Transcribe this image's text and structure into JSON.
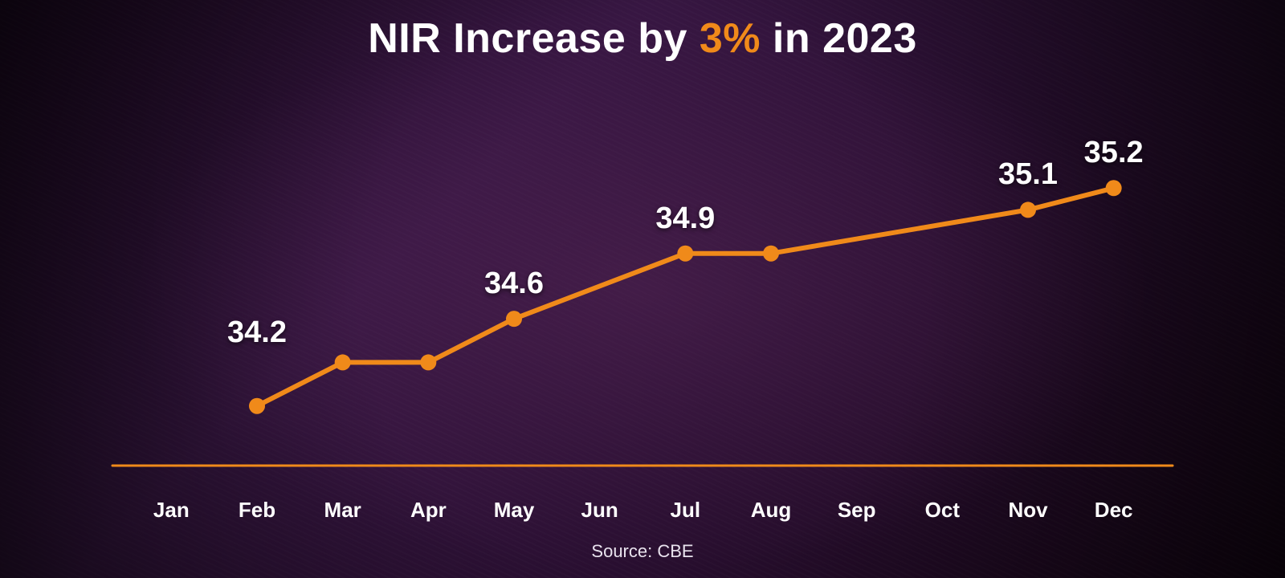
{
  "title": {
    "pre": "NIR Increase by ",
    "accent": "3%",
    "post": " in 2023",
    "fontsize": 52,
    "color": "#ffffff",
    "accent_color": "#f08a1a"
  },
  "source": {
    "text": "Source: CBE",
    "fontsize": 22,
    "color": "#e9e3ee"
  },
  "chart": {
    "type": "line",
    "background_color": "#2b1030",
    "line_color": "#f08a1a",
    "line_width": 6,
    "marker_color": "#f08a1a",
    "marker_radius": 10,
    "axis_color": "#f08a1a",
    "axis_width": 3,
    "xlabel_color": "#ffffff",
    "xlabel_fontsize": 26,
    "value_label_color": "#ffffff",
    "value_label_fontsize": 38,
    "ylim": [
      34.0,
      35.4
    ],
    "categories": [
      "Jan",
      "Feb",
      "Mar",
      "Apr",
      "May",
      "Jun",
      "Jul",
      "Aug",
      "Sep",
      "Oct",
      "Nov",
      "Dec"
    ],
    "points": [
      {
        "month": "Feb",
        "value": 34.2,
        "show_label": true,
        "show_marker": true
      },
      {
        "month": "Mar",
        "value": 34.4,
        "show_label": false,
        "show_marker": true
      },
      {
        "month": "Apr",
        "value": 34.4,
        "show_label": false,
        "show_marker": true
      },
      {
        "month": "May",
        "value": 34.6,
        "show_label": true,
        "show_marker": true
      },
      {
        "month": "Jul",
        "value": 34.9,
        "show_label": true,
        "show_marker": true
      },
      {
        "month": "Aug",
        "value": 34.9,
        "show_label": false,
        "show_marker": true
      },
      {
        "month": "Nov",
        "value": 35.1,
        "show_label": true,
        "show_marker": true
      },
      {
        "month": "Dec",
        "value": 35.2,
        "show_label": true,
        "show_marker": true
      }
    ],
    "label_offset_y": -22,
    "first_label_offset_y": -70
  }
}
